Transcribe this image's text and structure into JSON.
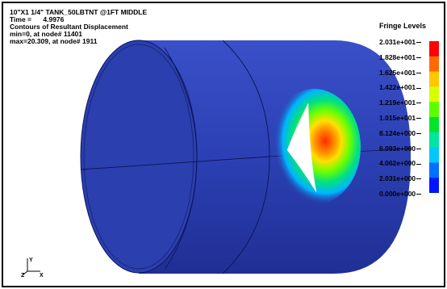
{
  "header": {
    "line1": "10\"X1 1/4\" TANK_50LBTNT @1FT MIDDLE",
    "line2_label": "Time =",
    "line2_value": "4.9976",
    "line3": "Contours of Resultant Displacement",
    "line4": "min=0, at node# 11401",
    "line5": "max=20.309, at node# 1911"
  },
  "legend": {
    "title": "Fringe Levels",
    "levels": [
      "2.031e+001",
      "1.828e+001",
      "1.625e+001",
      "1.422e+001",
      "1.219e+001",
      "1.015e+001",
      "8.124e+000",
      "6.093e+000",
      "4.062e+000",
      "2.031e+000",
      "0.000e+000"
    ],
    "colors": [
      "#ff0000",
      "#ff6a00",
      "#ffc800",
      "#d6ff00",
      "#5cff00",
      "#00e52a",
      "#00e5a0",
      "#00c8ff",
      "#0070ff",
      "#0015ff"
    ]
  },
  "triad": {
    "x_label": "X",
    "y_label": "Y",
    "z_label": "Z"
  },
  "colors": {
    "cylinder": "#2b3faf",
    "cylinder_dark": "#1c2c8c",
    "background": "#ffffff"
  }
}
